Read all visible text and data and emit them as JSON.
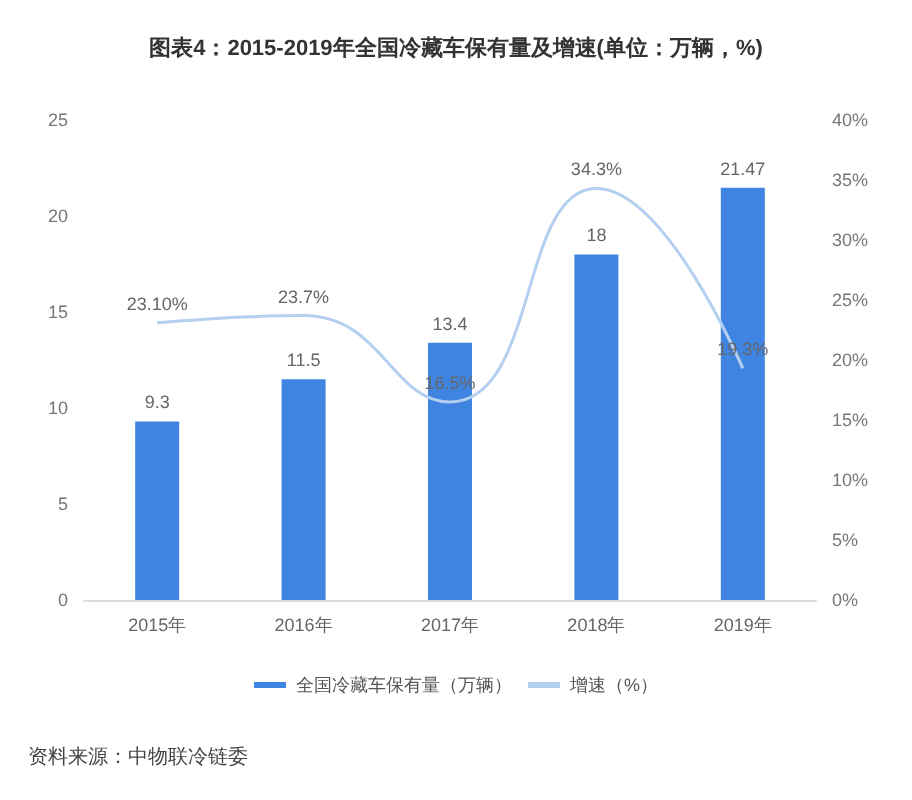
{
  "chart_data": {
    "type": "bar",
    "title": "图表4：2015-2019年全国冷藏车保有量及增速(单位：万辆，%)",
    "categories": [
      "2015年",
      "2016年",
      "2017年",
      "2018年",
      "2019年"
    ],
    "series": [
      {
        "name": "全国冷藏车保有量（万辆）",
        "color": "#3f84e0",
        "values": [
          9.3,
          11.5,
          13.4,
          18,
          21.47
        ],
        "value_labels": [
          "9.3",
          "11.5",
          "13.4",
          "18",
          "21.47"
        ]
      },
      {
        "name": "增速（%）",
        "type": "line",
        "axis": "y2",
        "color": "#b4cff0",
        "values": [
          23.1,
          23.7,
          16.5,
          34.3,
          19.3
        ],
        "value_labels": [
          "23.10%",
          "23.7%",
          "16.5%",
          "34.3%",
          "19.3%"
        ]
      }
    ],
    "ylim": [
      0,
      25
    ],
    "yticks": [
      0,
      5,
      10,
      15,
      20,
      25
    ],
    "y2lim": [
      0,
      40
    ],
    "y2ticks": [
      {
        "value": 0,
        "label": "0%"
      },
      {
        "value": 5,
        "label": "5%"
      },
      {
        "value": 10,
        "label": "10%"
      },
      {
        "value": 15,
        "label": "15%"
      },
      {
        "value": 20,
        "label": "20%"
      },
      {
        "value": 25,
        "label": "25%"
      },
      {
        "value": 30,
        "label": "30%"
      },
      {
        "value": 35,
        "label": "35%"
      },
      {
        "value": 40,
        "label": "40%"
      }
    ],
    "grid": false,
    "legend": "bottom",
    "marker": "none",
    "annotations": [
      "资料来源：中物联冷链委"
    ]
  }
}
